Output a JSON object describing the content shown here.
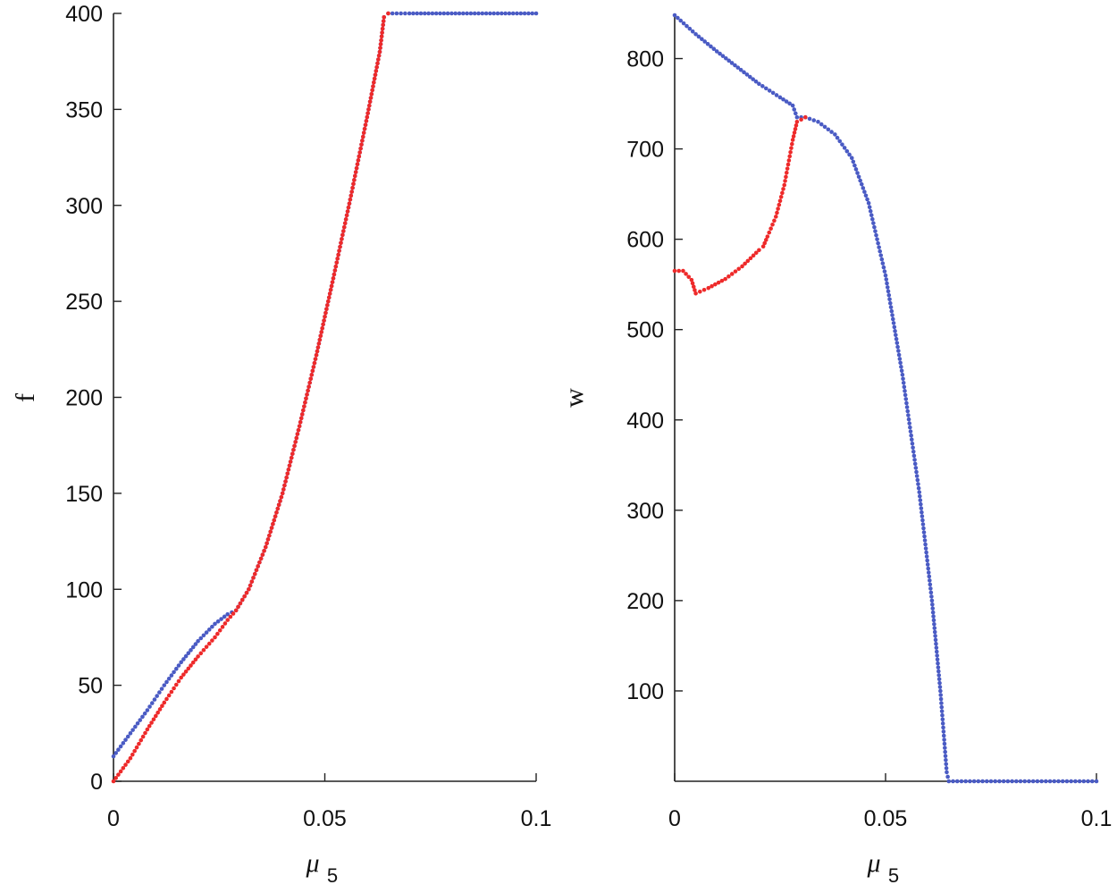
{
  "chart_data": [
    {
      "type": "scatter",
      "xlabel": "μ",
      "xlabel_sub": "5",
      "ylabel": "f",
      "xlim": [
        0,
        0.1
      ],
      "ylim": [
        0,
        400
      ],
      "x_ticks": [
        "0",
        "0.05",
        "0.1"
      ],
      "y_ticks": [
        "0",
        "50",
        "100",
        "150",
        "200",
        "250",
        "300",
        "350",
        "400"
      ],
      "grid": false,
      "series": [
        {
          "color": "#4a5bc4",
          "points": [
            [
              0,
              13
            ],
            [
              0.004,
              25
            ],
            [
              0.008,
              37
            ],
            [
              0.012,
              50
            ],
            [
              0.016,
              62
            ],
            [
              0.02,
              73
            ],
            [
              0.024,
              82
            ],
            [
              0.027,
              87
            ],
            [
              0.029,
              89
            ],
            [
              0.032,
              100
            ],
            [
              0.036,
              122
            ],
            [
              0.04,
              150
            ],
            [
              0.044,
              185
            ],
            [
              0.048,
              222
            ],
            [
              0.052,
              262
            ],
            [
              0.056,
              303
            ],
            [
              0.06,
              346
            ],
            [
              0.063,
              380
            ],
            [
              0.064,
              398
            ],
            [
              0.065,
              400
            ],
            [
              0.07,
              400
            ],
            [
              0.08,
              400
            ],
            [
              0.09,
              400
            ],
            [
              0.1,
              400
            ]
          ]
        },
        {
          "color": "#ee2a2a",
          "points": [
            [
              0,
              0
            ],
            [
              0.004,
              12
            ],
            [
              0.008,
              27
            ],
            [
              0.012,
              41
            ],
            [
              0.016,
              54
            ],
            [
              0.02,
              65
            ],
            [
              0.024,
              75
            ],
            [
              0.027,
              84
            ],
            [
              0.029,
              89
            ],
            [
              0.032,
              100
            ],
            [
              0.036,
              122
            ],
            [
              0.04,
              150
            ],
            [
              0.044,
              185
            ],
            [
              0.048,
              222
            ],
            [
              0.052,
              262
            ],
            [
              0.056,
              303
            ],
            [
              0.06,
              346
            ],
            [
              0.063,
              380
            ],
            [
              0.064,
              398
            ],
            [
              0.065,
              400
            ]
          ]
        }
      ]
    },
    {
      "type": "scatter",
      "xlabel": "μ",
      "xlabel_sub": "5",
      "ylabel": "w",
      "xlim": [
        0,
        0.1
      ],
      "ylim": [
        0,
        850
      ],
      "x_ticks": [
        "0",
        "0.05",
        "0.1"
      ],
      "y_ticks": [
        "100",
        "200",
        "300",
        "400",
        "500",
        "600",
        "700",
        "800"
      ],
      "grid": false,
      "series": [
        {
          "color": "#4a5bc4",
          "points": [
            [
              0,
              848
            ],
            [
              0.005,
              827
            ],
            [
              0.01,
              808
            ],
            [
              0.015,
              790
            ],
            [
              0.02,
              772
            ],
            [
              0.025,
              757
            ],
            [
              0.028,
              748
            ],
            [
              0.029,
              735
            ],
            [
              0.031,
              735
            ],
            [
              0.034,
              730
            ],
            [
              0.038,
              716
            ],
            [
              0.042,
              690
            ],
            [
              0.046,
              640
            ],
            [
              0.05,
              560
            ],
            [
              0.054,
              450
            ],
            [
              0.058,
              320
            ],
            [
              0.061,
              200
            ],
            [
              0.063,
              100
            ],
            [
              0.0645,
              10
            ],
            [
              0.065,
              0
            ],
            [
              0.07,
              0
            ],
            [
              0.08,
              0
            ],
            [
              0.09,
              0
            ],
            [
              0.1,
              0
            ]
          ]
        },
        {
          "color": "#ee2a2a",
          "points": [
            [
              0,
              565
            ],
            [
              0.002,
              565
            ],
            [
              0.004,
              555
            ],
            [
              0.005,
              540
            ],
            [
              0.008,
              546
            ],
            [
              0.012,
              556
            ],
            [
              0.016,
              570
            ],
            [
              0.02,
              588
            ],
            [
              0.021,
              592
            ],
            [
              0.022,
              603
            ],
            [
              0.024,
              625
            ],
            [
              0.026,
              660
            ],
            [
              0.028,
              710
            ],
            [
              0.029,
              730
            ],
            [
              0.031,
              735
            ]
          ]
        }
      ]
    }
  ]
}
